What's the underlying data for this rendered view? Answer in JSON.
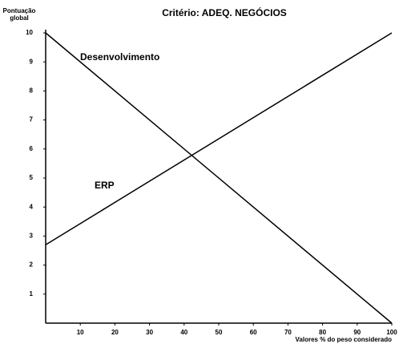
{
  "chart_data": {
    "type": "line",
    "title": "Critério: ADEQ. NEGÓCIOS",
    "y_label": "Pontuação global",
    "x_label": "Valores % do peso considerado",
    "x": [
      0,
      100
    ],
    "series": [
      {
        "name": "Desenvolvimento",
        "color": "#000000",
        "values": [
          10,
          0
        ]
      },
      {
        "name": "ERP",
        "color": "#000000",
        "values": [
          2.7,
          10
        ]
      }
    ],
    "xlim": [
      0,
      100
    ],
    "xticks": [
      10,
      20,
      30,
      40,
      50,
      60,
      70,
      80,
      90,
      100
    ],
    "ylim": [
      0,
      10
    ],
    "yticks": [
      1,
      2,
      3,
      4,
      5,
      6,
      7,
      8,
      9,
      10
    ],
    "grid": false
  }
}
